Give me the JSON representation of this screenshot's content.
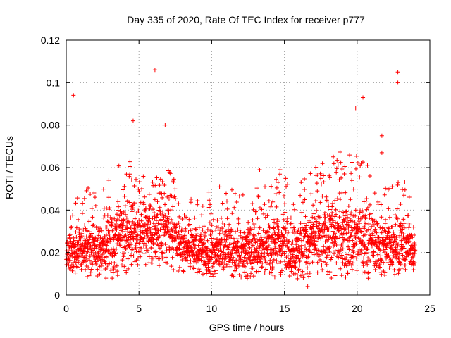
{
  "chart_data": {
    "type": "scatter",
    "title": "Day 335 of 2020, Rate Of TEC Index for receiver p777",
    "xlabel": "GPS time / hours",
    "ylabel": "ROTI / TECUs",
    "xlim": [
      0,
      25
    ],
    "ylim": [
      0,
      0.12
    ],
    "x_ticks": [
      0,
      5,
      10,
      15,
      20,
      25
    ],
    "y_ticks": [
      0,
      0.02,
      0.04,
      0.06,
      0.08,
      0.1,
      0.12
    ],
    "x_tick_labels": [
      "0",
      "5",
      "10",
      "15",
      "20",
      "25"
    ],
    "y_tick_labels": [
      "0",
      "0.02",
      "0.04",
      "0.06",
      "0.08",
      "0.1",
      "0.12"
    ],
    "grid": true,
    "marker": "plus",
    "series": [
      {
        "name": "ROTI",
        "color": "#ff0000",
        "notable_points": [
          {
            "x": 0.5,
            "y": 0.094
          },
          {
            "x": 6.1,
            "y": 0.106
          },
          {
            "x": 6.8,
            "y": 0.08
          },
          {
            "x": 4.6,
            "y": 0.082
          },
          {
            "x": 22.8,
            "y": 0.105
          },
          {
            "x": 22.8,
            "y": 0.1
          },
          {
            "x": 20.4,
            "y": 0.093
          },
          {
            "x": 19.9,
            "y": 0.088
          },
          {
            "x": 21.7,
            "y": 0.075
          },
          {
            "x": 21.7,
            "y": 0.067
          },
          {
            "x": 13.3,
            "y": 0.059
          },
          {
            "x": 14.7,
            "y": 0.059
          },
          {
            "x": 16.6,
            "y": 0.004
          }
        ],
        "envelope_hours": [
          0,
          1,
          2,
          3,
          4,
          5,
          6,
          7,
          8,
          9,
          10,
          11,
          12,
          13,
          14,
          15,
          16,
          17,
          18,
          19,
          20,
          21,
          22,
          23,
          24
        ],
        "typical_upper": [
          0.028,
          0.04,
          0.042,
          0.045,
          0.055,
          0.05,
          0.045,
          0.05,
          0.038,
          0.036,
          0.04,
          0.042,
          0.038,
          0.04,
          0.045,
          0.048,
          0.042,
          0.05,
          0.055,
          0.058,
          0.06,
          0.05,
          0.045,
          0.05,
          0.03
        ],
        "typical_lower": [
          0.01,
          0.009,
          0.008,
          0.007,
          0.01,
          0.013,
          0.012,
          0.011,
          0.01,
          0.009,
          0.008,
          0.008,
          0.008,
          0.007,
          0.008,
          0.008,
          0.007,
          0.008,
          0.009,
          0.009,
          0.01,
          0.009,
          0.009,
          0.01,
          0.012
        ],
        "typical_center": [
          0.018,
          0.022,
          0.022,
          0.024,
          0.03,
          0.03,
          0.028,
          0.03,
          0.024,
          0.021,
          0.021,
          0.022,
          0.021,
          0.022,
          0.024,
          0.024,
          0.023,
          0.025,
          0.026,
          0.028,
          0.028,
          0.025,
          0.022,
          0.024,
          0.02
        ]
      }
    ]
  }
}
